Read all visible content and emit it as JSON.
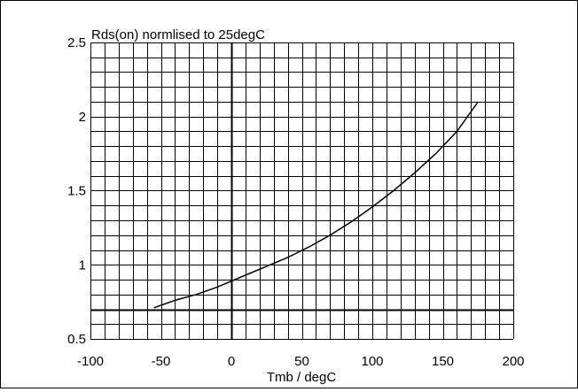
{
  "chart_data": {
    "type": "line",
    "title": "Rds(on) normlised to 25degC",
    "xlabel": "Tmb / degC",
    "ylabel": "",
    "xlim": [
      -100,
      200
    ],
    "ylim": [
      0.5,
      2.5
    ],
    "xticks": [
      -100,
      -50,
      0,
      50,
      100,
      150,
      200
    ],
    "xtick_labels": [
      "-100",
      "-50",
      "0",
      "50",
      "100",
      "150",
      "200"
    ],
    "yticks": [
      0.5,
      1,
      1.5,
      2,
      2.5
    ],
    "ytick_labels": [
      "0.5",
      "1",
      "1.5",
      "2",
      "2.5"
    ],
    "grid": true,
    "grid_x_step": 10,
    "grid_y_step": 0.1,
    "reference_lines": {
      "x": 0,
      "y": 0.7
    },
    "series": [
      {
        "x": [
          -55,
          -40,
          -25,
          -10,
          0,
          10,
          25,
          40,
          55,
          70,
          85,
          100,
          115,
          130,
          145,
          160,
          175
        ],
        "y": [
          0.71,
          0.76,
          0.8,
          0.85,
          0.89,
          0.93,
          0.99,
          1.05,
          1.12,
          1.2,
          1.29,
          1.39,
          1.5,
          1.62,
          1.75,
          1.9,
          2.1
        ]
      }
    ],
    "colors": {
      "line": "#000000",
      "grid": "#000000"
    }
  }
}
